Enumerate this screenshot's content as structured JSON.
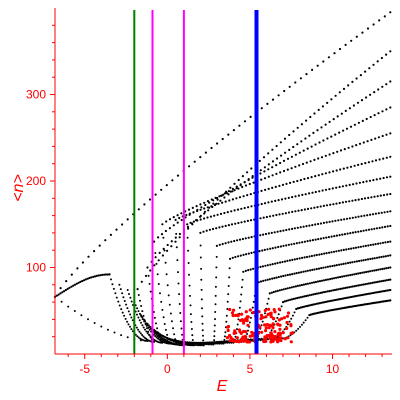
{
  "chart_data": {
    "type": "scatter",
    "title": "",
    "xlabel": "E",
    "ylabel": "<n>",
    "xlim": [
      -6.8,
      13.6
    ],
    "ylim": [
      0,
      400
    ],
    "x_ticks": [
      -5,
      0,
      5,
      10
    ],
    "y_ticks": [
      100,
      200,
      300
    ],
    "colors": {
      "axis": "#ff0000",
      "dots": "#000000",
      "highlight_dots": "#ff0000",
      "green_line": "#008000",
      "magenta_line": "#ff00ff",
      "blue_line": "#0000ff"
    },
    "vertical_lines": [
      {
        "x": -2.0,
        "color": "#008000",
        "width": 2
      },
      {
        "x": -0.9,
        "color": "#ff00ff",
        "width": 2
      },
      {
        "x": 1.0,
        "color": "#ff00ff",
        "width": 2
      },
      {
        "x": 5.4,
        "color": "#0000ff",
        "width": 4
      }
    ],
    "bands": [
      {
        "x0": -6.8,
        "y0": 66,
        "x1": 13.5,
        "y1": 395,
        "peak_x": -3.5,
        "peak_y": 92,
        "min_x": -1.2,
        "min_y": 15
      },
      {
        "x0": -1.8,
        "y0": 75,
        "x1": 13.5,
        "y1": 350,
        "peak_x": -2.9,
        "peak_y": 80,
        "min_x": -0.8,
        "min_y": 14
      },
      {
        "x0": -1.2,
        "y0": 100,
        "x1": 13.5,
        "y1": 315,
        "peak_x": -2.4,
        "peak_y": 74,
        "min_x": -0.3,
        "min_y": 13
      },
      {
        "x0": -0.8,
        "y0": 130,
        "x1": 13.5,
        "y1": 285,
        "peak_x": -2.0,
        "peak_y": 60,
        "min_x": 0.2,
        "min_y": 12
      },
      {
        "x0": -0.3,
        "y0": 150,
        "x1": 13.5,
        "y1": 255,
        "peak_x": -1.6,
        "peak_y": 45,
        "min_x": 0.6,
        "min_y": 11
      },
      {
        "x0": 0.5,
        "y0": 155,
        "x1": 13.5,
        "y1": 228,
        "peak_x": -1.2,
        "peak_y": 35,
        "min_x": 1.0,
        "min_y": 10
      },
      {
        "x0": 1.2,
        "y0": 150,
        "x1": 13.5,
        "y1": 205,
        "peak_x": -0.8,
        "peak_y": 28,
        "min_x": 1.6,
        "min_y": 10
      },
      {
        "x0": 2.0,
        "y0": 140,
        "x1": 13.5,
        "y1": 185,
        "peak_x": -0.4,
        "peak_y": 22,
        "min_x": 2.2,
        "min_y": 10
      },
      {
        "x0": 3.0,
        "y0": 125,
        "x1": 13.5,
        "y1": 165,
        "peak_x": 0.0,
        "peak_y": 18,
        "min_x": 2.8,
        "min_y": 11
      },
      {
        "x0": 3.8,
        "y0": 110,
        "x1": 13.5,
        "y1": 148,
        "peak_x": 0.4,
        "peak_y": 15,
        "min_x": 3.4,
        "min_y": 12
      },
      {
        "x0": 4.6,
        "y0": 95,
        "x1": 13.5,
        "y1": 130,
        "peak_x": 0.8,
        "peak_y": 13,
        "min_x": 4.0,
        "min_y": 13
      },
      {
        "x0": 5.4,
        "y0": 82,
        "x1": 13.5,
        "y1": 114,
        "peak_x": 1.2,
        "peak_y": 12,
        "min_x": 4.6,
        "min_y": 14
      },
      {
        "x0": 6.2,
        "y0": 70,
        "x1": 13.5,
        "y1": 100,
        "peak_x": 1.6,
        "peak_y": 12,
        "min_x": 5.2,
        "min_y": 15
      },
      {
        "x0": 7.0,
        "y0": 60,
        "x1": 13.5,
        "y1": 86,
        "peak_x": 2.0,
        "peak_y": 12,
        "min_x": 5.8,
        "min_y": 16
      },
      {
        "x0": 7.8,
        "y0": 52,
        "x1": 13.5,
        "y1": 74,
        "peak_x": 2.4,
        "peak_y": 12,
        "min_x": 6.4,
        "min_y": 17
      },
      {
        "x0": 8.6,
        "y0": 45,
        "x1": 13.5,
        "y1": 62,
        "peak_x": 2.8,
        "peak_y": 13,
        "min_x": 7.0,
        "min_y": 18
      }
    ],
    "red_cluster": {
      "x_range": [
        3.6,
        7.6
      ],
      "y_range": [
        14,
        52
      ],
      "count": 160
    }
  }
}
